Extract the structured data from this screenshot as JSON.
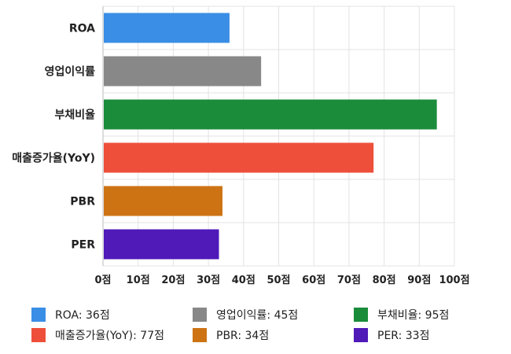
{
  "chart_data": {
    "type": "bar",
    "orientation": "horizontal",
    "categories": [
      "ROA",
      "영업이익률",
      "부채비율",
      "매출증가율(YoY)",
      "PBR",
      "PER"
    ],
    "values": [
      36,
      45,
      95,
      77,
      34,
      33
    ],
    "colors": [
      "#3a8ee6",
      "#888888",
      "#1a8c3a",
      "#ee4f3a",
      "#cd7314",
      "#4f1ab8"
    ],
    "xlim": [
      0,
      100
    ],
    "xticks": [
      "0점",
      "10점",
      "20점",
      "30점",
      "40점",
      "50점",
      "60점",
      "70점",
      "80점",
      "90점",
      "100점"
    ],
    "grid": true,
    "legend_position": "bottom",
    "legend": [
      {
        "label": "ROA: 36점",
        "color": "#3a8ee6"
      },
      {
        "label": "영업이익률: 45점",
        "color": "#888888"
      },
      {
        "label": "부채비율: 95점",
        "color": "#1a8c3a"
      },
      {
        "label": "매출증가율(YoY): 77점",
        "color": "#ee4f3a"
      },
      {
        "label": "PBR: 34점",
        "color": "#cd7314"
      },
      {
        "label": "PER: 33점",
        "color": "#4f1ab8"
      }
    ]
  }
}
